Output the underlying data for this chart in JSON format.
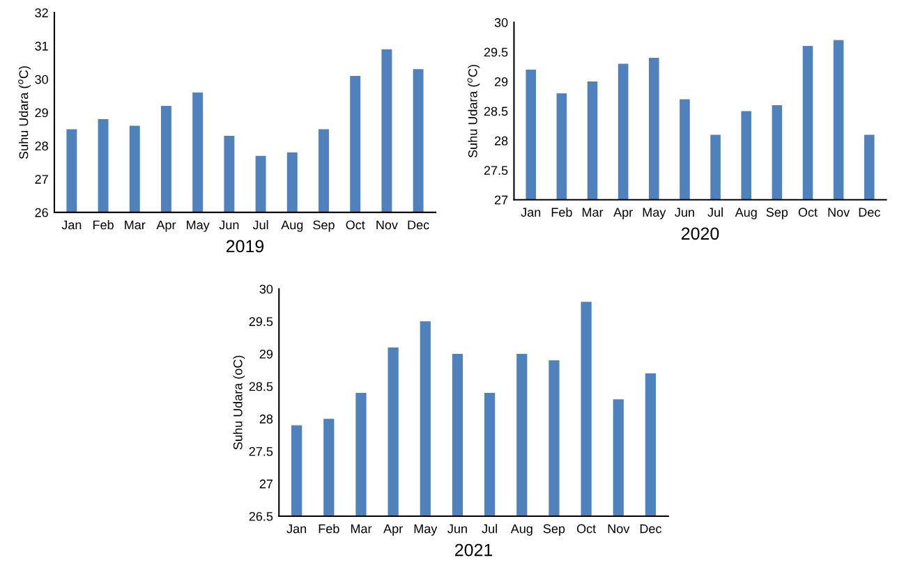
{
  "chart_data": [
    {
      "type": "bar",
      "xlabel": "2019",
      "ylabel": "Suhu Udara ($^{o}$C)",
      "categories": [
        "Jan",
        "Feb",
        "Mar",
        "Apr",
        "May",
        "Jun",
        "Jul",
        "Aug",
        "Sep",
        "Oct",
        "Nov",
        "Dec"
      ],
      "values": [
        28.5,
        28.8,
        28.6,
        29.2,
        29.6,
        28.3,
        27.7,
        27.8,
        28.5,
        30.1,
        30.9,
        30.3
      ],
      "color": "#4f81bd",
      "ylim": [
        26,
        32
      ],
      "yticks": [
        26,
        27,
        28,
        29,
        30,
        31,
        32
      ],
      "grid": false,
      "legend": false
    },
    {
      "type": "bar",
      "xlabel": "2020",
      "ylabel": "Suhu Udara ($^{o}$C)",
      "categories": [
        "Jan",
        "Feb",
        "Mar",
        "Apr",
        "May",
        "Jun",
        "Jul",
        "Aug",
        "Sep",
        "Oct",
        "Nov",
        "Dec"
      ],
      "values": [
        29.2,
        28.8,
        29.0,
        29.3,
        29.4,
        28.7,
        28.1,
        28.5,
        28.6,
        29.6,
        29.7,
        28.1
      ],
      "color": "#4f81bd",
      "ylim": [
        27,
        30
      ],
      "yticks": [
        27,
        27.5,
        28,
        28.5,
        29,
        29.5,
        30
      ],
      "grid": false,
      "legend": false
    },
    {
      "type": "bar",
      "xlabel": "2021",
      "ylabel": "Suhu Udara (oC)",
      "categories": [
        "Jan",
        "Feb",
        "Mar",
        "Apr",
        "May",
        "Jun",
        "Jul",
        "Aug",
        "Sep",
        "Oct",
        "Nov",
        "Dec"
      ],
      "values": [
        27.9,
        28.0,
        28.4,
        29.1,
        29.5,
        29.0,
        28.4,
        29.0,
        28.9,
        29.8,
        28.3,
        28.7
      ],
      "color": "#4f81bd",
      "ylim": [
        26.5,
        30
      ],
      "yticks": [
        26.5,
        27,
        27.5,
        28,
        28.5,
        29,
        29.5,
        30
      ],
      "grid": false,
      "legend": false
    }
  ]
}
